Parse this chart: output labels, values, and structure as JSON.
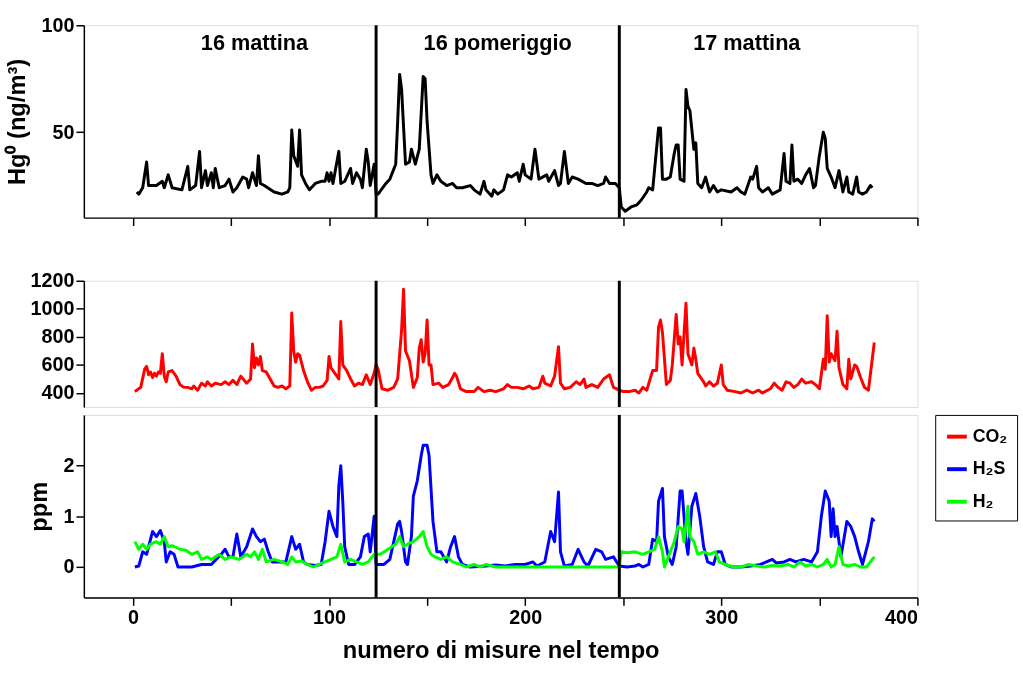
{
  "chart_data": [
    {
      "type": "line",
      "ylabel": "Hg⁰ (ng/m³)",
      "xlim": [
        -25,
        400
      ],
      "ylim": [
        10,
        100
      ],
      "yticks": [
        50,
        100
      ],
      "xticks": [
        {
          "value": 0,
          "label": null
        },
        {
          "value": 50,
          "label": null
        },
        {
          "value": 100,
          "label": null
        },
        {
          "value": 150,
          "label": null
        },
        {
          "value": 200,
          "label": null
        },
        {
          "value": 250,
          "label": null
        },
        {
          "value": 300,
          "label": null
        },
        {
          "value": 350,
          "label": null
        },
        {
          "value": 400,
          "label": null
        }
      ],
      "tick_labels": "y",
      "grid": false,
      "marker": "none",
      "line_style": "solid",
      "ref_lines": [
        {
          "axis": "x",
          "value": 124,
          "color": "#000000"
        },
        {
          "axis": "x",
          "value": 248,
          "color": "#000000"
        }
      ],
      "annotations": [
        "16 mattina",
        "16 pomeriggio",
        "17 mattina"
      ],
      "series": [
        {
          "color": "#000000",
          "x": [
            2,
            3,
            5,
            7,
            8,
            12,
            15,
            16,
            18,
            20,
            25,
            28,
            29,
            32,
            34,
            35,
            37,
            38,
            40,
            41,
            42,
            44,
            47,
            49,
            51,
            53,
            56,
            58,
            59,
            61,
            63,
            64,
            65,
            67,
            72,
            76,
            79,
            80,
            81,
            82,
            84,
            85,
            86,
            88,
            90,
            93,
            96,
            98,
            99,
            100,
            101,
            102,
            105,
            106,
            108,
            111,
            112,
            114,
            116,
            117,
            119,
            120,
            121,
            123,
            124,
            125,
            129,
            131,
            134,
            135,
            136,
            137,
            139,
            141,
            142,
            144,
            146,
            148,
            149,
            150,
            152,
            153,
            155,
            157,
            160,
            163,
            165,
            168,
            172,
            174,
            177,
            179,
            180,
            183,
            184,
            186,
            189,
            191,
            193,
            196,
            197,
            199,
            200,
            203,
            205,
            207,
            211,
            212,
            215,
            217,
            218,
            220,
            222,
            224,
            227,
            231,
            234,
            237,
            240,
            241,
            243,
            246,
            248,
            249,
            251,
            254,
            257,
            259,
            262,
            263,
            265,
            268,
            269,
            270,
            272,
            274,
            276,
            277,
            278,
            279,
            281,
            282,
            283,
            284,
            286,
            287,
            288,
            290,
            292,
            294,
            296,
            298,
            300,
            305,
            308,
            310,
            312,
            315,
            316,
            318,
            319,
            321,
            324,
            326,
            330,
            332,
            333,
            335,
            336,
            337,
            339,
            341,
            343,
            345,
            347,
            348,
            350,
            352,
            353,
            354,
            356,
            358,
            360,
            362,
            364,
            365,
            367,
            369,
            370,
            372,
            374,
            376,
            377
          ],
          "values": [
            22,
            21,
            24,
            36,
            25,
            25,
            27,
            24,
            30,
            24,
            23,
            34,
            23,
            25,
            41,
            24,
            32,
            25,
            31,
            24,
            33,
            24,
            25,
            28,
            22,
            24,
            29,
            28,
            24,
            31,
            25,
            39,
            26,
            25,
            22,
            21,
            22,
            24,
            51,
            39,
            34,
            51,
            30,
            26,
            23,
            26,
            27,
            27,
            31,
            27,
            31,
            26,
            41,
            26,
            27,
            33,
            26,
            31,
            28,
            24,
            42,
            36,
            25,
            35,
            21,
            21,
            26,
            28,
            35,
            55,
            77,
            70,
            35,
            36,
            42,
            35,
            42,
            76,
            75,
            55,
            30,
            26,
            30,
            27,
            25,
            26,
            24,
            24,
            25,
            23,
            21,
            27,
            23,
            20,
            23,
            21,
            23,
            30,
            29,
            31,
            27,
            35,
            30,
            28,
            42,
            28,
            30,
            27,
            32,
            25,
            26,
            41,
            26,
            29,
            28,
            26,
            26,
            25,
            26,
            29,
            26,
            26,
            24,
            15,
            13,
            15,
            16,
            18,
            22,
            24,
            23,
            52,
            52,
            28,
            28,
            29,
            40,
            44,
            44,
            28,
            27,
            70,
            62,
            60,
            42,
            45,
            26,
            24,
            29,
            22,
            25,
            22,
            23,
            22,
            24,
            22,
            21,
            29,
            28,
            34,
            24,
            22,
            24,
            21,
            23,
            40,
            27,
            26,
            44,
            27,
            28,
            26,
            30,
            33,
            24,
            25,
            39,
            50,
            47,
            33,
            29,
            24,
            32,
            22,
            29,
            22,
            21,
            29,
            22,
            21,
            22,
            25,
            24
          ]
        }
      ]
    },
    {
      "type": "line",
      "xlim": [
        -25,
        400
      ],
      "ylim": [
        300,
        1200
      ],
      "yticks": [
        400,
        600,
        800,
        1000,
        1200
      ],
      "tick_labels": "y",
      "grid": false,
      "marker": "none",
      "line_style": "solid",
      "ref_lines": [
        {
          "axis": "x",
          "value": 124,
          "color": "#000000"
        },
        {
          "axis": "x",
          "value": 248,
          "color": "#000000"
        }
      ],
      "series": [
        {
          "name": "CO₂",
          "color": "#ff0000",
          "x": [
            1,
            3,
            4,
            6,
            7,
            8,
            9,
            10,
            11,
            12,
            13,
            14,
            15,
            16,
            17,
            18,
            20,
            22,
            24,
            26,
            28,
            30,
            31,
            33,
            35,
            37,
            38,
            40,
            42,
            45,
            47,
            49,
            51,
            53,
            55,
            58,
            60,
            61,
            62,
            63,
            64,
            65,
            66,
            68,
            70,
            72,
            74,
            76,
            78,
            80,
            81,
            82,
            83,
            84,
            85,
            87,
            89,
            91,
            93,
            95,
            97,
            99,
            100,
            101,
            103,
            105,
            106,
            107,
            109,
            111,
            113,
            115,
            117,
            119,
            121,
            123,
            124,
            125,
            127,
            130,
            133,
            135,
            137,
            138,
            139,
            141,
            143,
            145,
            146,
            147,
            148,
            149,
            150,
            151,
            152,
            153,
            156,
            158,
            161,
            163,
            164,
            165,
            167,
            170,
            174,
            176,
            179,
            182,
            185,
            189,
            191,
            193,
            196,
            199,
            202,
            204,
            207,
            209,
            210,
            213,
            215,
            217,
            218,
            220,
            223,
            226,
            228,
            230,
            231,
            234,
            237,
            240,
            243,
            245,
            248,
            250,
            253,
            256,
            258,
            260,
            262,
            265,
            267,
            268,
            269,
            270,
            272,
            274,
            275,
            277,
            278,
            279,
            280,
            282,
            283,
            285,
            286,
            287,
            288,
            291,
            292,
            294,
            296,
            298,
            300,
            301,
            303,
            307,
            310,
            313,
            316,
            319,
            321,
            325,
            327,
            329,
            331,
            333,
            335,
            337,
            339,
            341,
            343,
            346,
            348,
            350,
            352,
            353,
            354,
            355,
            356,
            358,
            359,
            360,
            362,
            364,
            365,
            366,
            368,
            369,
            371,
            373,
            375,
            378
          ],
          "values": [
            410,
            430,
            440,
            570,
            590,
            530,
            550,
            510,
            540,
            520,
            550,
            540,
            680,
            520,
            480,
            550,
            560,
            520,
            460,
            440,
            440,
            430,
            450,
            420,
            470,
            450,
            480,
            450,
            470,
            460,
            480,
            460,
            490,
            460,
            520,
            470,
            500,
            750,
            580,
            650,
            600,
            660,
            560,
            550,
            500,
            450,
            440,
            450,
            430,
            450,
            970,
            700,
            620,
            680,
            670,
            560,
            480,
            420,
            440,
            440,
            450,
            490,
            660,
            580,
            540,
            500,
            910,
            600,
            560,
            500,
            450,
            470,
            460,
            530,
            460,
            540,
            600,
            570,
            430,
            420,
            440,
            500,
            850,
            1140,
            700,
            630,
            440,
            510,
            720,
            780,
            620,
            680,
            920,
            600,
            600,
            460,
            470,
            440,
            460,
            510,
            540,
            520,
            430,
            410,
            410,
            440,
            410,
            420,
            410,
            430,
            460,
            440,
            440,
            430,
            450,
            430,
            440,
            520,
            470,
            450,
            520,
            730,
            470,
            430,
            440,
            480,
            460,
            500,
            440,
            460,
            440,
            500,
            530,
            440,
            420,
            410,
            410,
            420,
            400,
            440,
            420,
            560,
            560,
            870,
            920,
            830,
            460,
            490,
            600,
            960,
            750,
            800,
            600,
            1040,
            680,
            600,
            720,
            640,
            540,
            480,
            450,
            480,
            450,
            470,
            600,
            460,
            420,
            410,
            400,
            420,
            400,
            420,
            400,
            430,
            470,
            440,
            420,
            480,
            470,
            440,
            460,
            500,
            470,
            480,
            460,
            430,
            640,
            570,
            950,
            620,
            680,
            630,
            840,
            580,
            460,
            430,
            640,
            500,
            600,
            590,
            510,
            440,
            420,
            760
          ]
        }
      ]
    },
    {
      "type": "line",
      "xlabel": "numero di misure nel tempo",
      "ylabel": "ppm",
      "xlim": [
        -25,
        400
      ],
      "ylim": [
        -0.6,
        3
      ],
      "yticks": [
        0,
        1,
        2
      ],
      "xticks": [
        0,
        {
          "value": 50,
          "label": null
        },
        100,
        {
          "value": 150,
          "label": null
        },
        200,
        {
          "value": 250,
          "label": null
        },
        300,
        {
          "value": 350,
          "label": null
        },
        400
      ],
      "grid": false,
      "marker": "none",
      "line_style": "solid",
      "legend": "right",
      "ref_lines": [
        {
          "axis": "x",
          "value": 124,
          "color": "#000000"
        },
        {
          "axis": "x",
          "value": 248,
          "color": "#000000"
        }
      ],
      "series": [
        {
          "name": "H₂S",
          "color": "#0000ff",
          "x": [
            1,
            3,
            5,
            7,
            10,
            12,
            14,
            16,
            17,
            19,
            21,
            23,
            30,
            35,
            40,
            45,
            47,
            49,
            51,
            53,
            55,
            58,
            61,
            63,
            65,
            67,
            69,
            71,
            75,
            78,
            81,
            83,
            85,
            87,
            89,
            93,
            96,
            98,
            100,
            102,
            104,
            105,
            106,
            107,
            108,
            110,
            113,
            116,
            118,
            120,
            121,
            123,
            124,
            128,
            131,
            133,
            135,
            136,
            137,
            139,
            140,
            142,
            143,
            145,
            147,
            148,
            150,
            151,
            153,
            155,
            157,
            160,
            162,
            164,
            166,
            168,
            172,
            180,
            185,
            190,
            195,
            200,
            204,
            206,
            210,
            213,
            215,
            217,
            218,
            220,
            224,
            227,
            230,
            232,
            236,
            239,
            241,
            245,
            248,
            252,
            256,
            258,
            260,
            263,
            265,
            267,
            268,
            270,
            271,
            273,
            275,
            277,
            279,
            280,
            282,
            283,
            285,
            287,
            289,
            291,
            293,
            296,
            298,
            300,
            302,
            305,
            310,
            315,
            320,
            323,
            326,
            328,
            332,
            335,
            338,
            342,
            346,
            349,
            351,
            353,
            355,
            356,
            357,
            358,
            359,
            361,
            364,
            366,
            368,
            370,
            372,
            375,
            377,
            378
          ],
          "values": [
            0,
            0.02,
            0.3,
            0.25,
            0.7,
            0.6,
            0.72,
            0.5,
            0.1,
            0.3,
            0.25,
            0,
            0,
            0.05,
            0.05,
            0.25,
            0.35,
            0.2,
            0.2,
            0.65,
            0.2,
            0.4,
            0.75,
            0.6,
            0.5,
            0.55,
            0.3,
            0.1,
            0.1,
            0.1,
            0.6,
            0.35,
            0.45,
            0.1,
            0.05,
            0.03,
            0.05,
            0.5,
            1.1,
            0.8,
            0.6,
            1.6,
            2,
            1.3,
            0.4,
            0.05,
            0.05,
            0.2,
            0.6,
            0.65,
            0.3,
            1,
            0.05,
            0.05,
            0.15,
            0.5,
            0.85,
            0.9,
            0.7,
            0.1,
            0.05,
            0.6,
            1.4,
            1.7,
            2.2,
            2.4,
            2.4,
            2.2,
            0.9,
            0.3,
            0.3,
            0.1,
            0.4,
            0.6,
            0.2,
            0.05,
            0,
            0.02,
            0.04,
            0.02,
            0.05,
            0.05,
            0.1,
            0.02,
            0.1,
            0.7,
            0.5,
            1.48,
            0.3,
            0.02,
            0.05,
            0.35,
            0.1,
            0.02,
            0.35,
            0.3,
            0.15,
            0.2,
            0.02,
            0,
            0.02,
            0.05,
            0,
            0.05,
            0.55,
            0.5,
            1.3,
            1.55,
            0.6,
            0.2,
            0.05,
            0.4,
            1.5,
            1.5,
            0.5,
            0.25,
            1.2,
            1.45,
            1,
            0.4,
            0.1,
            0.05,
            0.3,
            0.3,
            0.05,
            0,
            0,
            0.02,
            0.05,
            0.1,
            0.15,
            0.08,
            0.1,
            0.15,
            0.1,
            0.15,
            0.1,
            0.3,
            1,
            1.5,
            1.3,
            0.6,
            1.15,
            0.6,
            0.8,
            0.2,
            0.9,
            0.8,
            0.6,
            0.3,
            0.05,
            0.5,
            0.95,
            0.9
          ]
        },
        {
          "name": "H₂",
          "color": "#00ff00",
          "x": [
            1,
            3,
            5,
            7,
            9,
            12,
            14,
            16,
            18,
            20,
            24,
            27,
            30,
            33,
            35,
            38,
            40,
            44,
            47,
            50,
            54,
            58,
            60,
            62,
            64,
            66,
            68,
            72,
            76,
            79,
            81,
            83,
            86,
            89,
            92,
            95,
            98,
            101,
            104,
            106,
            108,
            111,
            114,
            117,
            120,
            123,
            126,
            129,
            132,
            134,
            136,
            138,
            140,
            143,
            146,
            148,
            150,
            152,
            154,
            157,
            160,
            163,
            167,
            170,
            174,
            177,
            180,
            185,
            190,
            248,
            249,
            252,
            256,
            260,
            263,
            266,
            268,
            270,
            271,
            273,
            276,
            278,
            280,
            281,
            283,
            284,
            286,
            288,
            291,
            294,
            297,
            299,
            302,
            306,
            310,
            314,
            318,
            322,
            326,
            330,
            334,
            337,
            340,
            343,
            346,
            349,
            352,
            354,
            356,
            358,
            360,
            362,
            365,
            368,
            371,
            374,
            377,
            378
          ],
          "values": [
            0.5,
            0.35,
            0.45,
            0.35,
            0.45,
            0.5,
            0.45,
            0.6,
            0.4,
            0.42,
            0.35,
            0.33,
            0.25,
            0.3,
            0.15,
            0.2,
            0.15,
            0.25,
            0.15,
            0.2,
            0.15,
            0.25,
            0.2,
            0.3,
            0.15,
            0.35,
            0.1,
            0.15,
            0.1,
            0.05,
            0.2,
            0.1,
            0.12,
            0.05,
            0,
            0.05,
            0.1,
            0.15,
            0.2,
            0.45,
            0.1,
            0.15,
            0.1,
            0.05,
            0.1,
            0.25,
            0.25,
            0.32,
            0.4,
            0.45,
            0.6,
            0.4,
            0.45,
            0.5,
            0.6,
            0.7,
            0.4,
            0.25,
            0.2,
            0.15,
            0.2,
            0.1,
            0.05,
            0,
            0.05,
            0,
            0.05,
            0,
            0,
            0,
            0.3,
            0.28,
            0.3,
            0.25,
            0.3,
            0.35,
            0.6,
            0.3,
            0,
            0.2,
            0.5,
            0.8,
            0.75,
            0.5,
            1.2,
            0.6,
            0.5,
            0.25,
            0.3,
            0.25,
            0.3,
            0.1,
            0.05,
            0,
            0,
            0.05,
            0.02,
            0,
            0.03,
            0.02,
            0.05,
            0,
            0.1,
            0.02,
            0.05,
            0,
            0.05,
            0.15,
            0,
            0.05,
            0.4,
            0.05,
            0.02,
            0.05,
            0,
            0,
            0.15,
            0.2
          ]
        }
      ]
    }
  ]
}
